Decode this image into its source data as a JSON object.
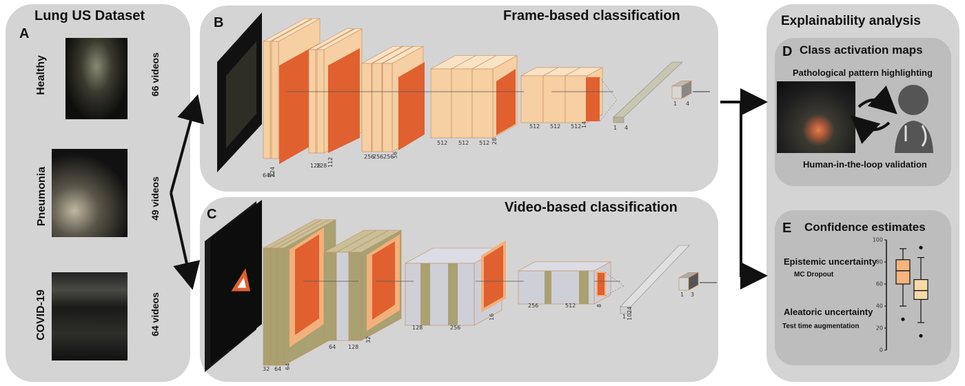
{
  "dataset": {
    "title": "Lung US Dataset",
    "letter": "A",
    "classes": [
      {
        "name": "Healthy",
        "count": "66 videos"
      },
      {
        "name": "Pneumonia",
        "count": "49 videos"
      },
      {
        "name": "COVID-19",
        "count": "64 videos"
      }
    ]
  },
  "frame": {
    "title": "Frame-based classification",
    "letter": "B",
    "dims": [
      "64",
      "64",
      "224",
      "128",
      "128",
      "112",
      "256",
      "256",
      "256",
      "56",
      "512",
      "512",
      "512",
      "28",
      "512",
      "512",
      "512",
      "14",
      "1",
      "4",
      "1",
      "4"
    ]
  },
  "video": {
    "title": "Video-based classification",
    "letter": "C",
    "dims": [
      "32",
      "64",
      "64",
      "64",
      "128",
      "32",
      "128",
      "256",
      "16",
      "256",
      "512",
      "8",
      "1",
      "1024",
      "1",
      "3"
    ]
  },
  "explain": {
    "title": "Explainability analysis",
    "cam": {
      "letter": "D",
      "title": "Class activation maps",
      "subtitle": "Pathological pattern highlighting",
      "caption": "Human-in-the-loop validation"
    },
    "confidence": {
      "letter": "E",
      "title": "Confidence estimates",
      "epistemic": "Epistemic uncertainty",
      "epistemic_method": "MC Dropout",
      "aleatoric": "Aleatoric uncertainty",
      "aleatoric_method": "Test time augmentation",
      "yticks": [
        "0",
        "20",
        "40",
        "60",
        "80",
        "100"
      ]
    }
  },
  "chart_data": {
    "type": "box",
    "yticks": [
      0,
      20,
      40,
      60,
      80,
      100
    ],
    "ylim": [
      0,
      100
    ],
    "series": [
      {
        "min": 40,
        "q1": 60,
        "median": 72,
        "q3": 82,
        "max": 92,
        "outliers": [
          28
        ],
        "color": "#f3b47f"
      },
      {
        "min": 25,
        "q1": 46,
        "median": 54,
        "q3": 64,
        "max": 84,
        "outliers": [
          13,
          93
        ],
        "color": "#f6d9a8"
      }
    ]
  },
  "colors": {
    "panel": "#d4d4d4",
    "inner": "#bdbdbd",
    "layer_light": "#f6cfa2",
    "layer_dark": "#e06030",
    "video_grey": "#cfcfd8",
    "video_olive": "#a9a172"
  }
}
